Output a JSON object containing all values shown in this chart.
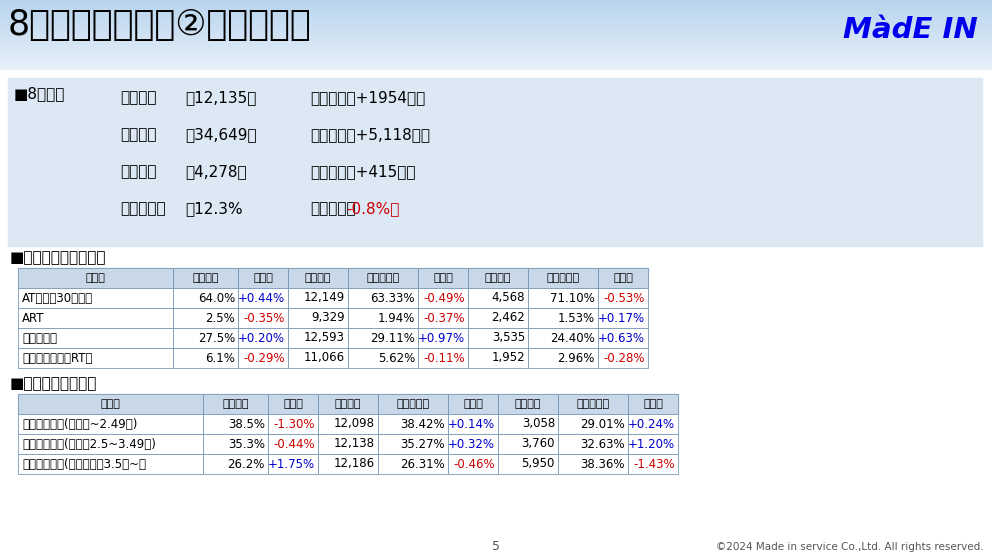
{
  "title": "8月市場振り返り②シェア構成",
  "logo_text": "MàdE IN",
  "bg_color": "#dce9f5",
  "white": "#ffffff",
  "black": "#000000",
  "summary_title": "■8月市場",
  "summary_labels": [
    "平均稼働",
    "平均売上",
    "平均粗利",
    "平均粗利率"
  ],
  "summary_values": [
    "：12,135枚",
    "：34,649円",
    "：4,278円",
    "：12.3%"
  ],
  "summary_changes_black": [
    "（前月比：+1954枚）",
    "（前月比：+5,118円）",
    "（前月比：+415円）",
    "（前月比："
  ],
  "summary_changes_red": [
    "",
    "",
    "",
    "-0.8%）"
  ],
  "table1_title": "■機種タイプ別シェア",
  "table1_headers": [
    "タイプ",
    "構成比率",
    "前月比",
    "平均稼働",
    "稼動シェア",
    "前月比",
    "平均粗利",
    "粗利シェア",
    "前月比"
  ],
  "table1_rows": [
    [
      "AT（含む30パイ）",
      "64.0%",
      "+0.44%",
      "12,149",
      "63.33%",
      "-0.49%",
      "4,568",
      "71.10%",
      "-0.53%"
    ],
    [
      "ART",
      "2.5%",
      "-0.35%",
      "9,329",
      "1.94%",
      "-0.37%",
      "2,462",
      "1.53%",
      "+0.17%"
    ],
    [
      "ジャグラー",
      "27.5%",
      "+0.20%",
      "12,593",
      "29.11%",
      "+0.97%",
      "3,535",
      "24.40%",
      "+0.63%"
    ],
    [
      "ノーマル（含むRT）",
      "6.1%",
      "-0.29%",
      "11,066",
      "5.62%",
      "-0.11%",
      "1,952",
      "2.96%",
      "-0.28%"
    ]
  ],
  "table1_row_colors": [
    [
      "black",
      "black",
      "blue",
      "black",
      "black",
      "red",
      "black",
      "black",
      "red"
    ],
    [
      "black",
      "black",
      "red",
      "black",
      "black",
      "red",
      "black",
      "black",
      "blue"
    ],
    [
      "black",
      "black",
      "blue",
      "black",
      "black",
      "blue",
      "black",
      "black",
      "blue"
    ],
    [
      "black",
      "black",
      "red",
      "black",
      "black",
      "red",
      "black",
      "black",
      "red"
    ]
  ],
  "table2_title": "■射幸強度別シェア",
  "table2_headers": [
    "タイプ",
    "構成比率",
    "前月比",
    "平均稼働",
    "稼動シェア",
    "前月比",
    "平均粗利",
    "粗利シェア",
    "前月比"
  ],
  "table2_rows": [
    [
      "低射幸タイプ(コ単価~2.49円)",
      "38.5%",
      "-1.30%",
      "12,098",
      "38.42%",
      "+0.14%",
      "3,058",
      "29.01%",
      "+0.24%"
    ],
    [
      "中射幸タイプ(コ単価2.5~3.49円)",
      "35.3%",
      "-0.44%",
      "12,138",
      "35.27%",
      "+0.32%",
      "3,760",
      "32.63%",
      "+1.20%"
    ],
    [
      "高射幸タイプ(コイン単価3.5円~）",
      "26.2%",
      "+1.75%",
      "12,186",
      "26.31%",
      "-0.46%",
      "5,950",
      "38.36%",
      "-1.43%"
    ]
  ],
  "table2_row_colors": [
    [
      "black",
      "black",
      "red",
      "black",
      "black",
      "blue",
      "black",
      "black",
      "blue"
    ],
    [
      "black",
      "black",
      "red",
      "black",
      "black",
      "blue",
      "black",
      "black",
      "blue"
    ],
    [
      "black",
      "black",
      "blue",
      "black",
      "black",
      "red",
      "black",
      "black",
      "red"
    ]
  ],
  "footer_text": "©2024 Made in service Co.,Ltd. All rights reserved.",
  "page_num": "5"
}
